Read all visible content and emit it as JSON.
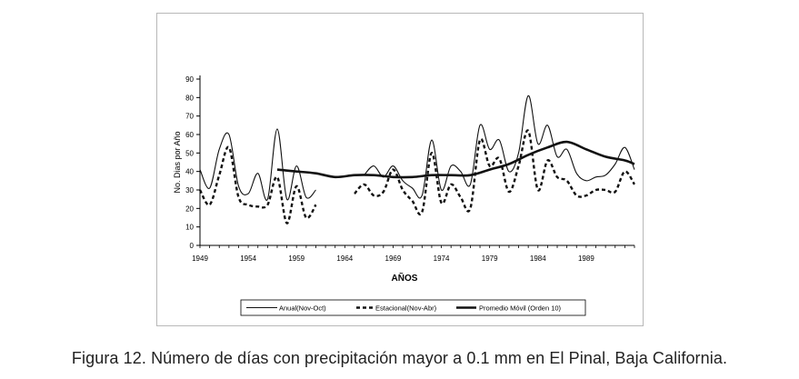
{
  "caption": "Figura 12. Número de días con precipitación mayor a 0.1 mm en El Pinal, Baja California.",
  "chart_data": {
    "type": "line",
    "title": "",
    "xlabel": "AÑOS",
    "ylabel": "No. Dias por Año",
    "xlim": [
      1949,
      1994
    ],
    "ylim": [
      0,
      90
    ],
    "yticks": [
      0,
      10,
      20,
      30,
      40,
      50,
      60,
      70,
      80,
      90
    ],
    "xticks": [
      1949,
      1954,
      1959,
      1964,
      1969,
      1974,
      1979,
      1984,
      1989
    ],
    "legend_position": "bottom",
    "series": [
      {
        "name": "Anual(Nov-Oct)",
        "style": "thin-solid",
        "x": [
          1949,
          1950,
          1951,
          1952,
          1953,
          1954,
          1955,
          1956,
          1957,
          1958,
          1959,
          1960,
          1961,
          1962,
          null,
          1966,
          1967,
          1968,
          1969,
          1970,
          1971,
          1972,
          1973,
          1974,
          1975,
          1976,
          1977,
          1978,
          1979,
          1980,
          1981,
          1982,
          1983,
          1984,
          1985,
          1986,
          1987,
          1988,
          1989,
          1990,
          1991,
          1992,
          1993,
          1994
        ],
        "y": [
          41,
          31,
          52,
          60,
          32,
          28,
          39,
          25,
          63,
          25,
          43,
          26,
          30,
          null,
          null,
          38,
          43,
          37,
          43,
          35,
          31,
          27,
          57,
          30,
          43,
          40,
          33,
          65,
          52,
          57,
          40,
          50,
          81,
          55,
          65,
          48,
          52,
          39,
          35,
          37,
          38,
          44,
          53,
          41
        ]
      },
      {
        "name": "Estacional(Nov-Abr)",
        "style": "dashed",
        "x": [
          1949,
          1950,
          1951,
          1952,
          1953,
          1954,
          1955,
          1956,
          1957,
          1958,
          1959,
          1960,
          1961,
          null,
          1965,
          1966,
          1967,
          1968,
          1969,
          1970,
          1971,
          1972,
          1973,
          1974,
          1975,
          1976,
          1977,
          1978,
          1979,
          1980,
          1981,
          1982,
          1983,
          1984,
          1985,
          1986,
          1987,
          1988,
          1989,
          1990,
          1991,
          1992,
          1993,
          1994
        ],
        "y": [
          30,
          22,
          38,
          53,
          26,
          22,
          21,
          22,
          37,
          12,
          32,
          15,
          22,
          null,
          28,
          33,
          27,
          29,
          41,
          30,
          24,
          18,
          50,
          23,
          33,
          26,
          20,
          57,
          43,
          47,
          29,
          43,
          62,
          30,
          46,
          37,
          35,
          27,
          27,
          30,
          30,
          29,
          40,
          33
        ]
      },
      {
        "name": "Promedio Móvil (Orden 10)",
        "style": "thick-solid",
        "x": [
          1957,
          1959,
          1961,
          1963,
          1965,
          1967,
          1969,
          1971,
          1973,
          1975,
          1977,
          1979,
          1981,
          1983,
          1985,
          1987,
          1989,
          1991,
          1993,
          1994
        ],
        "y": [
          41,
          40,
          39,
          37,
          38,
          38,
          37,
          37,
          38,
          38,
          38,
          41,
          44,
          49,
          53,
          56,
          52,
          48,
          46,
          44
        ]
      }
    ]
  }
}
